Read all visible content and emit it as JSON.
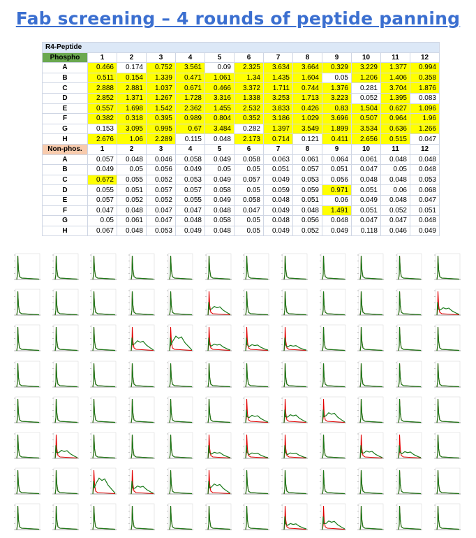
{
  "title": "Fab screening – 4 rounds of peptide panning",
  "table": {
    "band_label": "R4-Peptide",
    "columns": [
      "1",
      "2",
      "3",
      "4",
      "5",
      "6",
      "7",
      "8",
      "9",
      "10",
      "11",
      "12"
    ],
    "rows": [
      "A",
      "B",
      "C",
      "D",
      "E",
      "F",
      "G",
      "H"
    ],
    "sections": [
      {
        "label": "Phospho",
        "label_color": "#6aa84f",
        "values": [
          [
            "0.466",
            "0.174",
            "0.752",
            "3.561",
            "0.09",
            "2.325",
            "3.634",
            "3.664",
            "0.329",
            "3.229",
            "1.377",
            "0.994"
          ],
          [
            "0.511",
            "0.154",
            "1.339",
            "0.471",
            "1.061",
            "1.34",
            "1.435",
            "1.604",
            "0.05",
            "1.206",
            "1.406",
            "0.358"
          ],
          [
            "2.888",
            "2.881",
            "1.037",
            "0.671",
            "0.466",
            "3.372",
            "1.711",
            "0.744",
            "1.376",
            "0.281",
            "3.704",
            "1.876"
          ],
          [
            "2.852",
            "1.371",
            "1.267",
            "1.728",
            "3.316",
            "1.338",
            "3.253",
            "1.713",
            "3.223",
            "0.052",
            "1.395",
            "0.083"
          ],
          [
            "0.557",
            "1.698",
            "1.542",
            "2.362",
            "1.455",
            "2.532",
            "3.833",
            "0.426",
            "0.83",
            "1.504",
            "0.627",
            "1.096"
          ],
          [
            "0.382",
            "0.318",
            "0.395",
            "0.989",
            "0.804",
            "0.352",
            "3.186",
            "1.029",
            "3.696",
            "0.507",
            "0.964",
            "1.96"
          ],
          [
            "0.153",
            "3.095",
            "0.995",
            "0.67",
            "3.484",
            "0.282",
            "1.397",
            "3.549",
            "1.899",
            "3.534",
            "0.636",
            "1.266"
          ],
          [
            "2.676",
            "1.06",
            "2.289",
            "0.115",
            "0.048",
            "2.173",
            "0.714",
            "0.121",
            "0.411",
            "2.656",
            "0.515",
            "0.047"
          ]
        ],
        "highlighted": [
          [
            true,
            false,
            true,
            true,
            false,
            true,
            true,
            true,
            true,
            true,
            true,
            true
          ],
          [
            true,
            true,
            true,
            true,
            true,
            true,
            true,
            true,
            false,
            true,
            true,
            true
          ],
          [
            true,
            true,
            true,
            true,
            true,
            true,
            true,
            true,
            true,
            false,
            true,
            true
          ],
          [
            true,
            true,
            true,
            true,
            true,
            true,
            true,
            true,
            true,
            false,
            true,
            false
          ],
          [
            true,
            true,
            true,
            true,
            true,
            true,
            true,
            true,
            true,
            true,
            true,
            true
          ],
          [
            true,
            true,
            true,
            true,
            true,
            true,
            true,
            true,
            true,
            true,
            true,
            true
          ],
          [
            false,
            true,
            true,
            true,
            true,
            false,
            true,
            true,
            true,
            true,
            true,
            true
          ],
          [
            true,
            true,
            true,
            false,
            false,
            true,
            true,
            false,
            true,
            true,
            true,
            false
          ]
        ]
      },
      {
        "label": "Non-phos.",
        "label_color": "#f8cbad",
        "values": [
          [
            "0.057",
            "0.048",
            "0.046",
            "0.058",
            "0.049",
            "0.058",
            "0.063",
            "0.061",
            "0.064",
            "0.061",
            "0.048",
            "0.048"
          ],
          [
            "0.049",
            "0.05",
            "0.056",
            "0.049",
            "0.05",
            "0.05",
            "0.051",
            "0.057",
            "0.051",
            "0.047",
            "0.05",
            "0.048"
          ],
          [
            "0.672",
            "0.055",
            "0.052",
            "0.053",
            "0.049",
            "0.057",
            "0.049",
            "0.053",
            "0.056",
            "0.048",
            "0.048",
            "0.053"
          ],
          [
            "0.055",
            "0.051",
            "0.057",
            "0.057",
            "0.058",
            "0.05",
            "0.059",
            "0.059",
            "0.971",
            "0.051",
            "0.06",
            "0.068"
          ],
          [
            "0.057",
            "0.052",
            "0.052",
            "0.055",
            "0.049",
            "0.058",
            "0.048",
            "0.051",
            "0.06",
            "0.049",
            "0.048",
            "0.047"
          ],
          [
            "0.047",
            "0.048",
            "0.047",
            "0.047",
            "0.048",
            "0.047",
            "0.049",
            "0.048",
            "1.491",
            "0.051",
            "0.052",
            "0.051"
          ],
          [
            "0.05",
            "0.061",
            "0.047",
            "0.048",
            "0.058",
            "0.05",
            "0.048",
            "0.056",
            "0.048",
            "0.047",
            "0.047",
            "0.048"
          ],
          [
            "0.067",
            "0.048",
            "0.053",
            "0.049",
            "0.048",
            "0.05",
            "0.049",
            "0.052",
            "0.049",
            "0.118",
            "0.046",
            "0.049"
          ]
        ],
        "highlighted": [
          [
            false,
            false,
            false,
            false,
            false,
            false,
            false,
            false,
            false,
            false,
            false,
            false
          ],
          [
            false,
            false,
            false,
            false,
            false,
            false,
            false,
            false,
            false,
            false,
            false,
            false
          ],
          [
            true,
            false,
            false,
            false,
            false,
            false,
            false,
            false,
            false,
            false,
            false,
            false
          ],
          [
            false,
            false,
            false,
            false,
            false,
            false,
            false,
            false,
            true,
            false,
            false,
            false
          ],
          [
            false,
            false,
            false,
            false,
            false,
            false,
            false,
            false,
            false,
            false,
            false,
            false
          ],
          [
            false,
            false,
            false,
            false,
            false,
            false,
            false,
            false,
            true,
            false,
            false,
            false
          ],
          [
            false,
            false,
            false,
            false,
            false,
            false,
            false,
            false,
            false,
            false,
            false,
            false
          ],
          [
            false,
            false,
            false,
            false,
            false,
            false,
            false,
            false,
            false,
            false,
            false,
            false
          ]
        ]
      }
    ],
    "colors": {
      "highlight": "#ffff00",
      "band": "#dce8f7",
      "grid": "#cfd6e4"
    }
  },
  "histograms": {
    "rows": 8,
    "cols": 12,
    "series_colors": {
      "red": "#e00000",
      "green": "#1a7a1a"
    },
    "shifted_cells": [
      {
        "row": 1,
        "col": 5,
        "level": 0.45
      },
      {
        "row": 1,
        "col": 11,
        "level": 0.35
      },
      {
        "row": 2,
        "col": 3,
        "level": 0.55
      },
      {
        "row": 2,
        "col": 4,
        "level": 0.9
      },
      {
        "row": 2,
        "col": 5,
        "level": 0.3
      },
      {
        "row": 2,
        "col": 6,
        "level": 0.25
      },
      {
        "row": 2,
        "col": 7,
        "level": 0.2
      },
      {
        "row": 4,
        "col": 6,
        "level": 0.35
      },
      {
        "row": 4,
        "col": 7,
        "level": 0.4
      },
      {
        "row": 4,
        "col": 8,
        "level": 0.55
      },
      {
        "row": 5,
        "col": 1,
        "level": 0.4
      },
      {
        "row": 5,
        "col": 5,
        "level": 0.25
      },
      {
        "row": 5,
        "col": 6,
        "level": 0.2
      },
      {
        "row": 5,
        "col": 7,
        "level": 0.2
      },
      {
        "row": 5,
        "col": 9,
        "level": 0.35
      },
      {
        "row": 5,
        "col": 10,
        "level": 0.3
      },
      {
        "row": 6,
        "col": 2,
        "level": 1.0
      },
      {
        "row": 6,
        "col": 3,
        "level": 0.4
      },
      {
        "row": 6,
        "col": 5,
        "level": 0.55
      },
      {
        "row": 7,
        "col": 7,
        "level": 0.25
      },
      {
        "row": 7,
        "col": 8,
        "level": 0.45
      }
    ]
  }
}
